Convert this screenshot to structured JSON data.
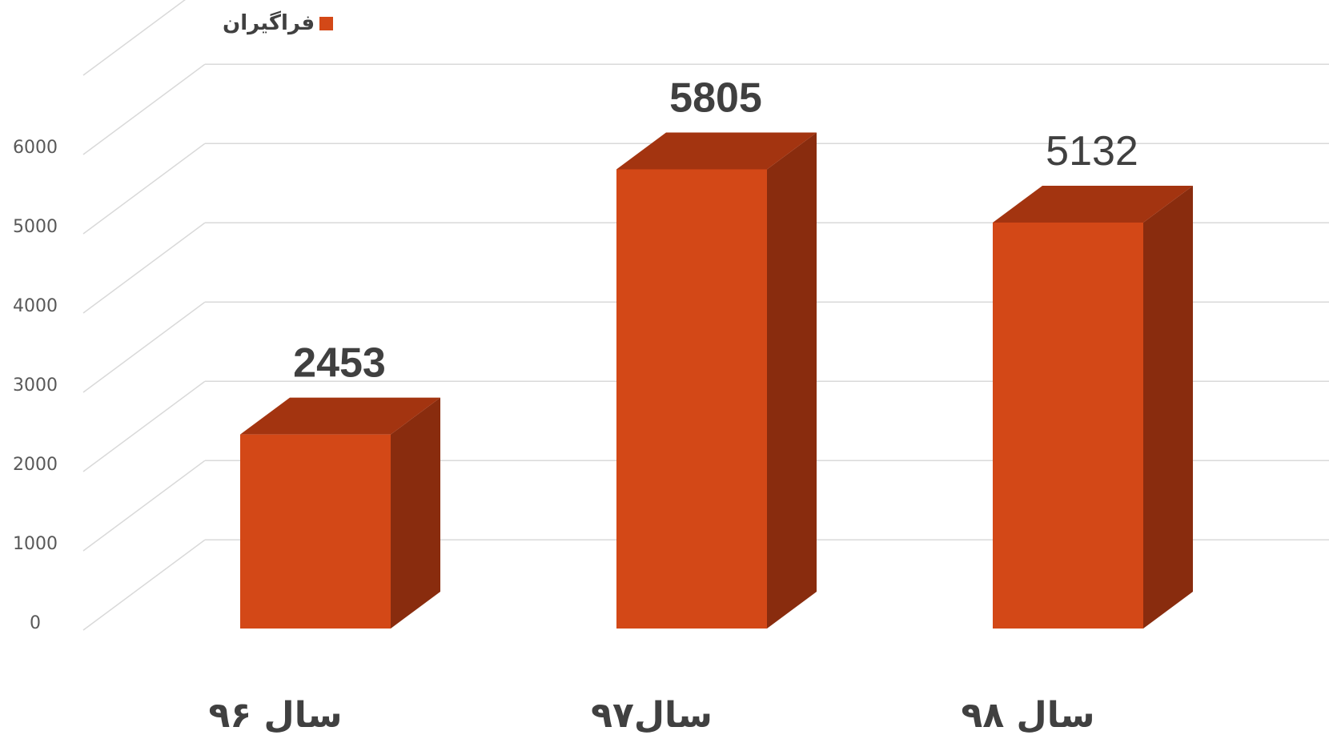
{
  "chart_data": {
    "type": "bar",
    "style": "3d-column",
    "categories": [
      "سال ۹۶",
      "سال۹۷",
      "سال ۹۸"
    ],
    "series": [
      {
        "name": "فراگیران",
        "values": [
          2453,
          5805,
          5132
        ]
      }
    ],
    "value_labels": [
      "2453",
      "5805",
      "5132"
    ],
    "y_ticks": [
      "0",
      "1000",
      "2000",
      "3000",
      "4000",
      "5000",
      "6000"
    ],
    "ylim": [
      0,
      7000
    ],
    "grid": true,
    "legend_position": "top-left",
    "colors": {
      "front": "#D34817",
      "top": "#A33410",
      "side": "#892C0E",
      "grid": "#D9D9D9"
    }
  }
}
